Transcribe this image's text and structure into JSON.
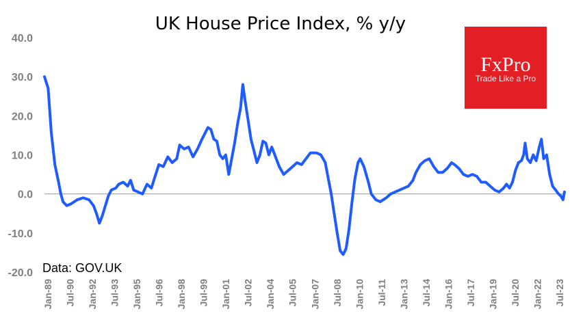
{
  "chart_data": {
    "type": "line",
    "title": "UK House Price Index, % y/y",
    "xlabel": "",
    "ylabel": "",
    "ylim": [
      -20,
      40
    ],
    "yticks": [
      "40.0",
      "30.0",
      "20.0",
      "10.0",
      "0.0",
      "-10.0",
      "-20.0"
    ],
    "grid": false,
    "xticks": [
      "Jan-89",
      "Jul-90",
      "Jan-92",
      "Jul-93",
      "Jan-95",
      "Jul-96",
      "Jan-98",
      "Jul-99",
      "Jan-01",
      "Jul-02",
      "Jan-04",
      "Jul-05",
      "Jan-07",
      "Jul-08",
      "Jan-10",
      "Jul-11",
      "Jan-13",
      "Jul-14",
      "Jan-16",
      "Jul-17",
      "Jan-19",
      "Jul-20",
      "Jan-22",
      "Jul-23"
    ],
    "series": [
      {
        "name": "UK House Price Index, % y/y",
        "color": "#1f5cff",
        "points": [
          [
            1989.0,
            30.0
          ],
          [
            1989.25,
            27.0
          ],
          [
            1989.45,
            16.0
          ],
          [
            1989.7,
            7.5
          ],
          [
            1989.95,
            3.0
          ],
          [
            1990.1,
            0.0
          ],
          [
            1990.25,
            -2.0
          ],
          [
            1990.5,
            -3.0
          ],
          [
            1990.8,
            -2.5
          ],
          [
            1991.2,
            -1.5
          ],
          [
            1991.6,
            -1.0
          ],
          [
            1992.0,
            -1.5
          ],
          [
            1992.3,
            -3.0
          ],
          [
            1992.5,
            -5.0
          ],
          [
            1992.7,
            -7.5
          ],
          [
            1992.9,
            -5.5
          ],
          [
            1993.1,
            -3.0
          ],
          [
            1993.3,
            -0.5
          ],
          [
            1993.5,
            1.0
          ],
          [
            1993.8,
            1.5
          ],
          [
            1994.0,
            2.5
          ],
          [
            1994.3,
            3.0
          ],
          [
            1994.6,
            2.0
          ],
          [
            1994.8,
            3.5
          ],
          [
            1995.0,
            1.0
          ],
          [
            1995.3,
            0.5
          ],
          [
            1995.6,
            0.0
          ],
          [
            1995.9,
            2.5
          ],
          [
            1996.2,
            1.5
          ],
          [
            1996.4,
            4.0
          ],
          [
            1996.7,
            7.5
          ],
          [
            1997.0,
            7.0
          ],
          [
            1997.3,
            9.5
          ],
          [
            1997.6,
            8.0
          ],
          [
            1997.9,
            9.0
          ],
          [
            1998.1,
            12.5
          ],
          [
            1998.4,
            11.5
          ],
          [
            1998.7,
            12.0
          ],
          [
            1999.0,
            9.5
          ],
          [
            1999.3,
            11.5
          ],
          [
            1999.6,
            14.0
          ],
          [
            1999.8,
            15.5
          ],
          [
            2000.0,
            17.0
          ],
          [
            2000.2,
            16.5
          ],
          [
            2000.4,
            14.0
          ],
          [
            2000.6,
            13.5
          ],
          [
            2000.8,
            10.0
          ],
          [
            2001.0,
            9.0
          ],
          [
            2001.2,
            10.0
          ],
          [
            2001.4,
            5.0
          ],
          [
            2001.6,
            9.0
          ],
          [
            2001.8,
            13.0
          ],
          [
            2002.0,
            18.0
          ],
          [
            2002.2,
            22.0
          ],
          [
            2002.35,
            28.0
          ],
          [
            2002.5,
            24.0
          ],
          [
            2002.7,
            19.0
          ],
          [
            2002.9,
            14.0
          ],
          [
            2003.1,
            11.0
          ],
          [
            2003.3,
            8.0
          ],
          [
            2003.5,
            10.0
          ],
          [
            2003.7,
            13.5
          ],
          [
            2003.9,
            13.0
          ],
          [
            2004.1,
            10.0
          ],
          [
            2004.3,
            12.0
          ],
          [
            2004.5,
            10.0
          ],
          [
            2004.8,
            7.0
          ],
          [
            2005.1,
            5.0
          ],
          [
            2005.4,
            6.0
          ],
          [
            2005.7,
            7.0
          ],
          [
            2006.0,
            8.0
          ],
          [
            2006.3,
            7.5
          ],
          [
            2006.6,
            9.0
          ],
          [
            2006.9,
            10.5
          ],
          [
            2007.3,
            10.5
          ],
          [
            2007.6,
            10.0
          ],
          [
            2007.9,
            8.0
          ],
          [
            2008.1,
            4.0
          ],
          [
            2008.3,
            0.0
          ],
          [
            2008.5,
            -5.0
          ],
          [
            2008.7,
            -10.0
          ],
          [
            2008.9,
            -14.5
          ],
          [
            2009.1,
            -15.5
          ],
          [
            2009.3,
            -14.0
          ],
          [
            2009.5,
            -9.0
          ],
          [
            2009.7,
            -2.0
          ],
          [
            2009.9,
            4.0
          ],
          [
            2010.1,
            8.0
          ],
          [
            2010.25,
            9.0
          ],
          [
            2010.5,
            7.0
          ],
          [
            2010.8,
            3.0
          ],
          [
            2011.0,
            0.0
          ],
          [
            2011.3,
            -1.5
          ],
          [
            2011.6,
            -2.0
          ],
          [
            2012.0,
            -1.0
          ],
          [
            2012.3,
            0.0
          ],
          [
            2012.6,
            0.5
          ],
          [
            2012.9,
            1.0
          ],
          [
            2013.2,
            1.5
          ],
          [
            2013.5,
            2.0
          ],
          [
            2013.8,
            3.5
          ],
          [
            2014.0,
            5.5
          ],
          [
            2014.3,
            7.5
          ],
          [
            2014.6,
            8.5
          ],
          [
            2014.9,
            9.0
          ],
          [
            2015.2,
            7.0
          ],
          [
            2015.5,
            5.5
          ],
          [
            2015.8,
            5.5
          ],
          [
            2016.1,
            6.5
          ],
          [
            2016.4,
            8.0
          ],
          [
            2016.6,
            7.5
          ],
          [
            2016.9,
            6.5
          ],
          [
            2017.2,
            5.0
          ],
          [
            2017.5,
            4.5
          ],
          [
            2017.8,
            5.0
          ],
          [
            2018.1,
            4.5
          ],
          [
            2018.4,
            3.0
          ],
          [
            2018.7,
            3.0
          ],
          [
            2019.0,
            2.0
          ],
          [
            2019.3,
            1.0
          ],
          [
            2019.6,
            0.5
          ],
          [
            2019.9,
            1.5
          ],
          [
            2020.1,
            2.5
          ],
          [
            2020.3,
            1.5
          ],
          [
            2020.5,
            3.0
          ],
          [
            2020.7,
            6.0
          ],
          [
            2020.9,
            8.0
          ],
          [
            2021.1,
            8.5
          ],
          [
            2021.25,
            10.0
          ],
          [
            2021.35,
            13.0
          ],
          [
            2021.5,
            9.0
          ],
          [
            2021.7,
            8.0
          ],
          [
            2021.9,
            10.0
          ],
          [
            2022.1,
            8.5
          ],
          [
            2022.3,
            12.0
          ],
          [
            2022.45,
            14.0
          ],
          [
            2022.6,
            9.0
          ],
          [
            2022.8,
            10.0
          ],
          [
            2023.0,
            5.0
          ],
          [
            2023.2,
            2.0
          ],
          [
            2023.4,
            1.0
          ],
          [
            2023.6,
            0.0
          ],
          [
            2023.75,
            -0.5
          ],
          [
            2023.9,
            -1.5
          ],
          [
            2024.0,
            0.5
          ]
        ]
      }
    ],
    "annotations": [
      "Data: GOV.UK"
    ]
  },
  "logo": {
    "name": "FxPro",
    "tagline": "Trade Like a Pro",
    "color": "#e31e24"
  }
}
